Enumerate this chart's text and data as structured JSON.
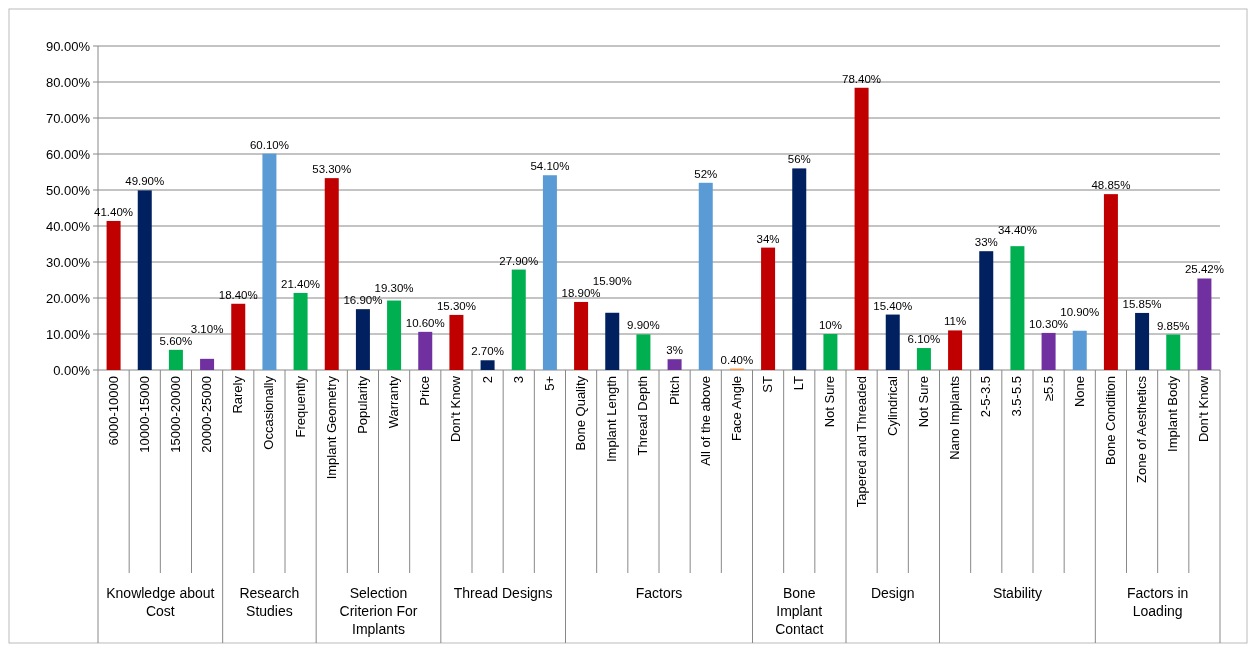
{
  "chart_data": {
    "type": "bar",
    "categories": [
      "6000-10000",
      "10000-15000",
      "15000-20000",
      "20000-25000",
      "Rarely",
      "Occasionally",
      "Frequently",
      "Implant Geometry",
      "Popularity",
      "Warranty",
      "Price",
      "Don't Know",
      "2",
      "3",
      "5+",
      "Bone Quality",
      "Implant Length",
      "Thread Depth",
      "Pitch",
      "All of the above",
      "Face Angle",
      "ST",
      "LT",
      "Not Sure",
      "Tapered and Threaded",
      "Cylindrical",
      "Not Sure",
      "Nano Implants",
      "2-5-3.5",
      "3.5-5.5",
      "≥5.5",
      "None",
      "Bone Condition",
      "Zone of Aesthetics",
      "Implant Body",
      "Don't Know"
    ],
    "values": [
      41.4,
      49.9,
      5.6,
      3.1,
      18.4,
      60.1,
      21.4,
      53.3,
      16.9,
      19.3,
      10.6,
      15.3,
      2.7,
      27.9,
      54.1,
      18.9,
      15.9,
      9.9,
      3,
      52,
      0.4,
      34,
      56,
      10,
      78.4,
      15.4,
      6.1,
      11,
      33,
      34.4,
      10.3,
      10.9,
      48.85,
      15.85,
      9.85,
      25.42
    ],
    "colors": [
      "#c00000",
      "#002060",
      "#00b050",
      "#7030a0",
      "#c00000",
      "#5b9bd5",
      "#00b050",
      "#c00000",
      "#002060",
      "#00b050",
      "#7030a0",
      "#c00000",
      "#002060",
      "#00b050",
      "#5b9bd5",
      "#c00000",
      "#002060",
      "#00b050",
      "#7030a0",
      "#5b9bd5",
      "#f79646",
      "#c00000",
      "#002060",
      "#00b050",
      "#c00000",
      "#002060",
      "#00b050",
      "#c00000",
      "#002060",
      "#00b050",
      "#7030a0",
      "#5b9bd5",
      "#c00000",
      "#002060",
      "#00b050",
      "#7030a0"
    ],
    "value_labels": [
      "41.40%",
      "49.90%",
      "5.60%",
      "3.10%",
      "18.40%",
      "60.10%",
      "21.40%",
      "53.30%",
      "16.90%",
      "19.30%",
      "10.60%",
      "15.30%",
      "2.70%",
      "27.90%",
      "54.10%",
      "18.90%",
      "15.90%",
      "9.90%",
      "3%",
      "52%",
      "0.40%",
      "34%",
      "56%",
      "10%",
      "78.40%",
      "15.40%",
      "6.10%",
      "11%",
      "33%",
      "34.40%",
      "10.30%",
      "10.90%",
      "48.85%",
      "15.85%",
      "9.85%",
      "25.42%"
    ],
    "ylim": [
      0,
      90
    ],
    "yticks": [
      {
        "value": 0,
        "label": "0.00%"
      },
      {
        "value": 10,
        "label": "10.00%"
      },
      {
        "value": 20,
        "label": "20.00%"
      },
      {
        "value": 30,
        "label": "30.00%"
      },
      {
        "value": 40,
        "label": "40.00%"
      },
      {
        "value": 50,
        "label": "50.00%"
      },
      {
        "value": 60,
        "label": "60.00%"
      },
      {
        "value": 70,
        "label": "70.00%"
      },
      {
        "value": 80,
        "label": "80.00%"
      },
      {
        "value": 90,
        "label": "90.00%"
      }
    ],
    "grid": "y",
    "annotations": [
      "Knowledge about Cost",
      "Research Studies",
      "Selection Criterion For Implants",
      "Thread Designs",
      "Factors",
      "Bone Implant Contact",
      "Design",
      "Stability",
      "Factors in Loading"
    ]
  }
}
